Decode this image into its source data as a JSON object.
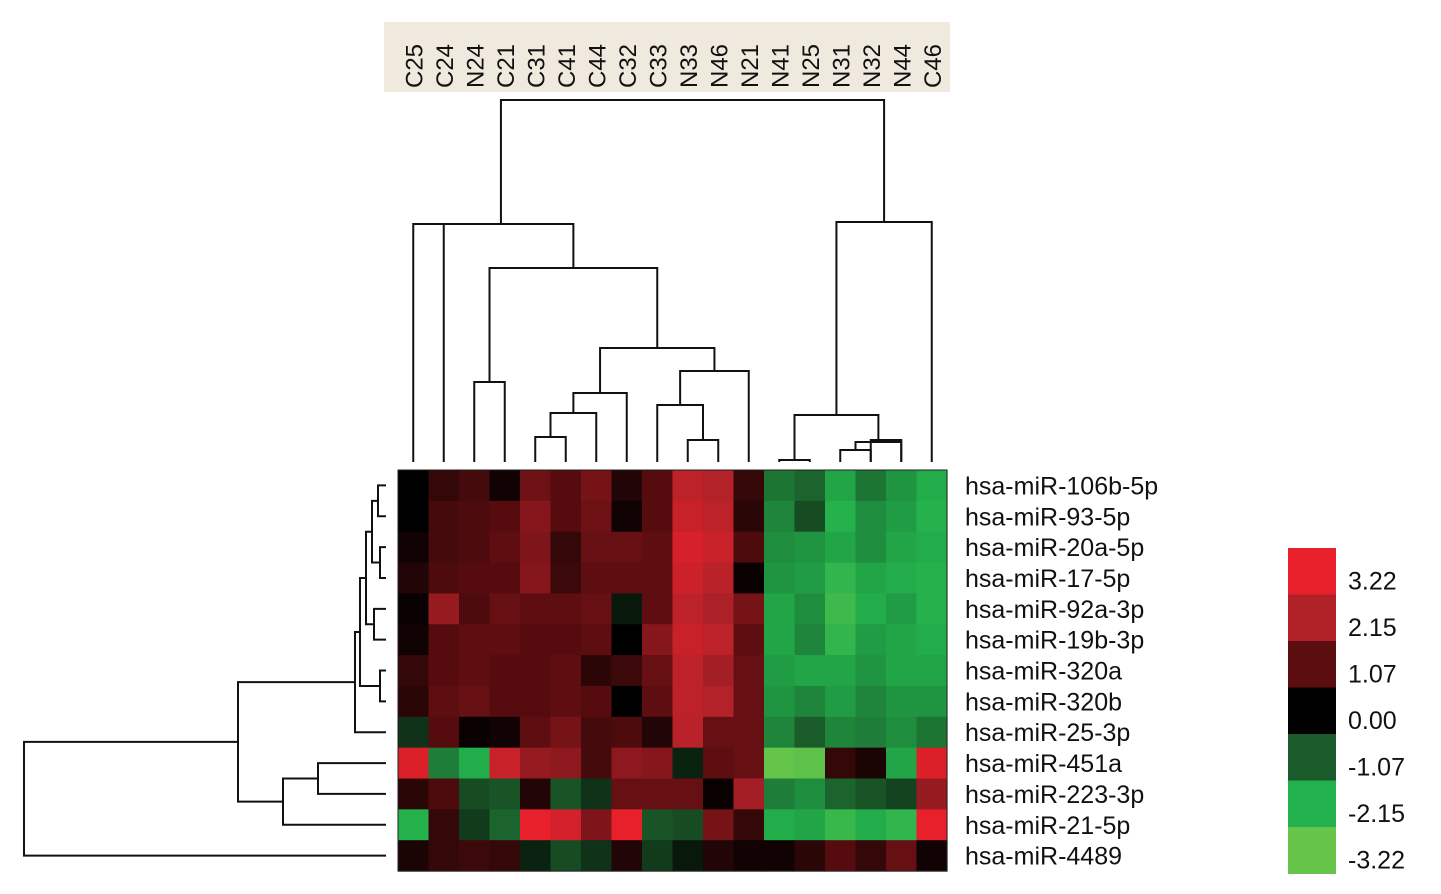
{
  "chart_data": {
    "type": "heatmap",
    "columns": [
      "C25",
      "C24",
      "N24",
      "C21",
      "C31",
      "C41",
      "C44",
      "C32",
      "C33",
      "N33",
      "N46",
      "N21",
      "N41",
      "N25",
      "N31",
      "N32",
      "N44",
      "C46"
    ],
    "rows": [
      "hsa-miR-106b-5p",
      "hsa-miR-93-5p",
      "hsa-miR-20a-5p",
      "hsa-miR-17-5p",
      "hsa-miR-92a-3p",
      "hsa-miR-19b-3p",
      "hsa-miR-320a",
      "hsa-miR-320b",
      "hsa-miR-25-3p",
      "hsa-miR-451a",
      "hsa-miR-223-3p",
      "hsa-miR-21-5p",
      "hsa-miR-4489"
    ],
    "values": [
      [
        0.0,
        0.6,
        0.8,
        0.2,
        1.3,
        1.0,
        1.4,
        0.4,
        1.0,
        2.4,
        2.2,
        0.6,
        -1.4,
        -1.2,
        -2.0,
        -1.4,
        -1.8,
        -2.1
      ],
      [
        0.0,
        0.8,
        0.9,
        1.0,
        1.6,
        1.0,
        1.3,
        0.2,
        1.0,
        2.6,
        2.4,
        0.5,
        -1.6,
        -0.9,
        -2.2,
        -1.7,
        -1.9,
        -2.2
      ],
      [
        0.2,
        0.8,
        0.9,
        1.1,
        1.5,
        0.6,
        1.2,
        1.2,
        1.1,
        2.9,
        2.6,
        0.9,
        -1.7,
        -1.8,
        -2.0,
        -1.7,
        -2.0,
        -2.1
      ],
      [
        0.4,
        0.9,
        1.0,
        1.0,
        1.6,
        0.7,
        1.1,
        1.1,
        1.1,
        2.7,
        2.3,
        0.1,
        -1.8,
        -1.9,
        -2.4,
        -2.0,
        -2.1,
        -2.2
      ],
      [
        0.1,
        1.8,
        0.9,
        1.2,
        1.1,
        1.1,
        1.2,
        -0.3,
        1.1,
        2.4,
        2.1,
        1.4,
        -2.0,
        -1.7,
        -2.6,
        -2.1,
        -1.9,
        -2.2
      ],
      [
        0.2,
        1.0,
        1.1,
        1.1,
        1.0,
        1.0,
        1.1,
        0.0,
        1.6,
        2.6,
        2.4,
        1.1,
        -2.0,
        -1.6,
        -2.4,
        -1.9,
        -2.0,
        -2.1
      ],
      [
        0.6,
        1.0,
        1.1,
        1.0,
        1.0,
        1.1,
        0.5,
        0.7,
        1.2,
        2.4,
        2.0,
        1.2,
        -1.9,
        -2.0,
        -2.0,
        -1.8,
        -2.0,
        -2.0
      ],
      [
        0.5,
        1.1,
        1.2,
        1.0,
        1.0,
        1.1,
        1.0,
        0.0,
        1.1,
        2.4,
        2.2,
        1.2,
        -1.8,
        -1.6,
        -1.9,
        -1.6,
        -1.8,
        -1.8
      ],
      [
        -0.6,
        1.0,
        0.1,
        0.2,
        1.1,
        1.4,
        0.8,
        0.9,
        0.4,
        2.3,
        1.2,
        1.2,
        -1.6,
        -1.1,
        -1.6,
        -1.5,
        -1.7,
        -1.4
      ],
      [
        3.0,
        -1.5,
        -2.1,
        2.6,
        1.8,
        1.7,
        0.8,
        1.7,
        1.6,
        -0.4,
        1.1,
        1.2,
        -3.2,
        -3.1,
        0.6,
        0.3,
        -2.0,
        3.0
      ],
      [
        0.5,
        0.9,
        -0.9,
        -1.0,
        0.4,
        -1.0,
        -0.6,
        1.2,
        1.2,
        1.2,
        0.1,
        2.0,
        -1.5,
        -1.7,
        -1.2,
        -1.0,
        -0.8,
        1.8
      ],
      [
        -2.2,
        0.6,
        -0.7,
        -1.2,
        3.2,
        2.8,
        1.5,
        3.3,
        -1.0,
        -0.9,
        1.4,
        0.6,
        -2.1,
        -2.0,
        -2.5,
        -2.1,
        -2.4,
        3.2
      ],
      [
        0.3,
        0.6,
        0.7,
        0.6,
        -0.4,
        -0.9,
        -0.6,
        0.4,
        -0.7,
        -0.3,
        0.4,
        0.2,
        0.2,
        0.5,
        1.0,
        0.6,
        1.2,
        0.2
      ]
    ],
    "legend": {
      "ticks": [
        "3.22",
        "2.15",
        "1.07",
        "0.00",
        "-1.07",
        "-2.15",
        "-3.22"
      ],
      "colors": [
        "#e8202b",
        "#b02228",
        "#5c0d10",
        "#000000",
        "#1b5a2a",
        "#22b14c",
        "#66c44a"
      ],
      "placement": "right"
    },
    "column_dendrogram": true,
    "row_dendrogram": true
  }
}
